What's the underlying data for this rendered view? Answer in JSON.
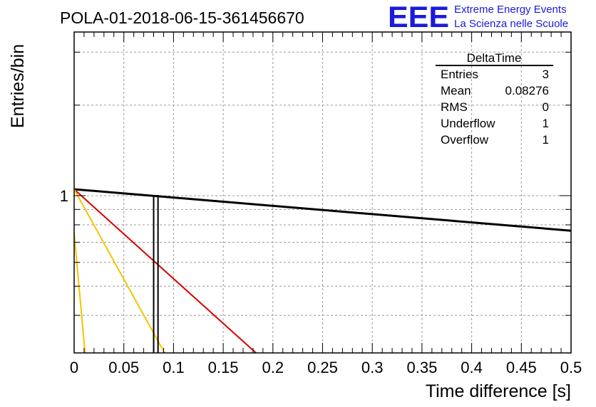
{
  "chart_data": {
    "type": "histogram",
    "title": "POLA-01-2018-06-15-361456670",
    "xlabel": "Time difference [s]",
    "ylabel": "Entries/bin",
    "xlim": [
      0,
      0.5
    ],
    "y_scale": "log",
    "ylim": [
      0.3,
      3.5
    ],
    "x_ticks": [
      "0",
      "0.05",
      "0.1",
      "0.15",
      "0.2",
      "0.25",
      "0.3",
      "0.35",
      "0.4",
      "0.45",
      "0.5"
    ],
    "y_ticks": [
      "1"
    ],
    "grid": true,
    "histogram": {
      "bins": [
        {
          "x0": 0.08,
          "x1": 0.0844,
          "value": 1
        }
      ],
      "color": "#000000"
    },
    "curves": [
      {
        "color": "#000000",
        "points": [
          [
            0,
            1.05
          ],
          [
            0.5,
            0.765
          ]
        ]
      },
      {
        "color": "#dd0000",
        "points": [
          [
            0,
            1.05
          ],
          [
            0.183,
            0.3
          ]
        ]
      },
      {
        "color": "#f5c400",
        "points": [
          [
            0,
            1.05
          ],
          [
            0.091,
            0.3
          ]
        ]
      },
      {
        "color": "#f5c400",
        "points": [
          [
            0,
            0.75
          ],
          [
            0.011,
            0.3
          ]
        ]
      }
    ],
    "stats": {
      "title": "DeltaTime",
      "rows": [
        {
          "label": "Entries",
          "value": "3"
        },
        {
          "label": "Mean",
          "value": "0.08276"
        },
        {
          "label": "RMS",
          "value": "0"
        },
        {
          "label": "Underflow",
          "value": "1"
        },
        {
          "label": "Overflow",
          "value": "1"
        }
      ]
    }
  },
  "logo": {
    "letters": "EEE",
    "line1": "Extreme Energy Events",
    "line2": "La Scienza nelle Scuole",
    "color": "#1a1adc"
  }
}
